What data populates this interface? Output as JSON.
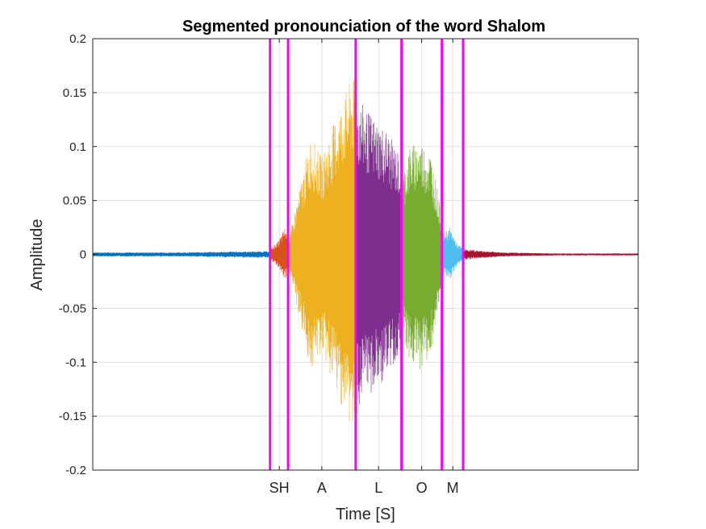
{
  "chart_data": {
    "type": "line",
    "title": "Segmented pronounciation of the word Shalom",
    "xlabel": "Time [S]",
    "ylabel": "Amplitude",
    "ylim": [
      -0.2,
      0.2
    ],
    "y_ticks": [
      0.2,
      0.15,
      0.1,
      0.05,
      0,
      -0.05,
      -0.1,
      -0.15,
      -0.2
    ],
    "y_tick_labels": [
      "0.2",
      "0.15",
      "0.1",
      "0.05",
      "0",
      "-0.05",
      "-0.1",
      "-0.15",
      "-0.2"
    ],
    "x_tick_labels": [
      "SH",
      "A",
      "L",
      "O",
      "M"
    ],
    "grid": true,
    "boundary_color": "#ff00ff",
    "series": [
      {
        "color": "#0072bd",
        "x": [
          0.0,
          0.325
        ],
        "envelope": [
          [
            0.0,
            0.002
          ],
          [
            0.16,
            0.002
          ],
          [
            0.3,
            0.003
          ],
          [
            0.325,
            0.003
          ]
        ]
      },
      {
        "color": "#d95319",
        "x": [
          0.325,
          0.358
        ],
        "envelope": [
          [
            0.325,
            0.005
          ],
          [
            0.34,
            0.012
          ],
          [
            0.352,
            0.025
          ],
          [
            0.358,
            0.02
          ]
        ]
      },
      {
        "color": "#edb120",
        "x": [
          0.358,
          0.482
        ],
        "envelope": [
          [
            0.358,
            0.01
          ],
          [
            0.37,
            0.04
          ],
          [
            0.385,
            0.075
          ],
          [
            0.4,
            0.11
          ],
          [
            0.42,
            0.09
          ],
          [
            0.44,
            0.12
          ],
          [
            0.46,
            0.145
          ],
          [
            0.475,
            0.165
          ],
          [
            0.482,
            0.16
          ]
        ]
      },
      {
        "color": "#7e2f8e",
        "x": [
          0.482,
          0.566
        ],
        "envelope": [
          [
            0.482,
            0.15
          ],
          [
            0.5,
            0.135
          ],
          [
            0.52,
            0.125
          ],
          [
            0.54,
            0.115
          ],
          [
            0.555,
            0.1
          ],
          [
            0.566,
            0.09
          ]
        ]
      },
      {
        "color": "#77ac30",
        "x": [
          0.566,
          0.64
        ],
        "envelope": [
          [
            0.566,
            0.07
          ],
          [
            0.58,
            0.1
          ],
          [
            0.6,
            0.107
          ],
          [
            0.62,
            0.095
          ],
          [
            0.635,
            0.05
          ],
          [
            0.64,
            0.03
          ]
        ]
      },
      {
        "color": "#4dbeee",
        "x": [
          0.64,
          0.679
        ],
        "envelope": [
          [
            0.64,
            0.02
          ],
          [
            0.655,
            0.025
          ],
          [
            0.668,
            0.01
          ],
          [
            0.679,
            0.006
          ]
        ]
      },
      {
        "color": "#a2142f",
        "x": [
          0.679,
          1.0
        ],
        "envelope": [
          [
            0.679,
            0.005
          ],
          [
            0.7,
            0.004
          ],
          [
            0.75,
            0.002
          ],
          [
            0.85,
            0.001
          ],
          [
            1.0,
            0.001
          ]
        ]
      }
    ],
    "boundaries": [
      0.325,
      0.358,
      0.482,
      0.566,
      0.64,
      0.679
    ],
    "segment_label_positions": [
      0.342,
      0.42,
      0.524,
      0.603,
      0.66
    ]
  }
}
